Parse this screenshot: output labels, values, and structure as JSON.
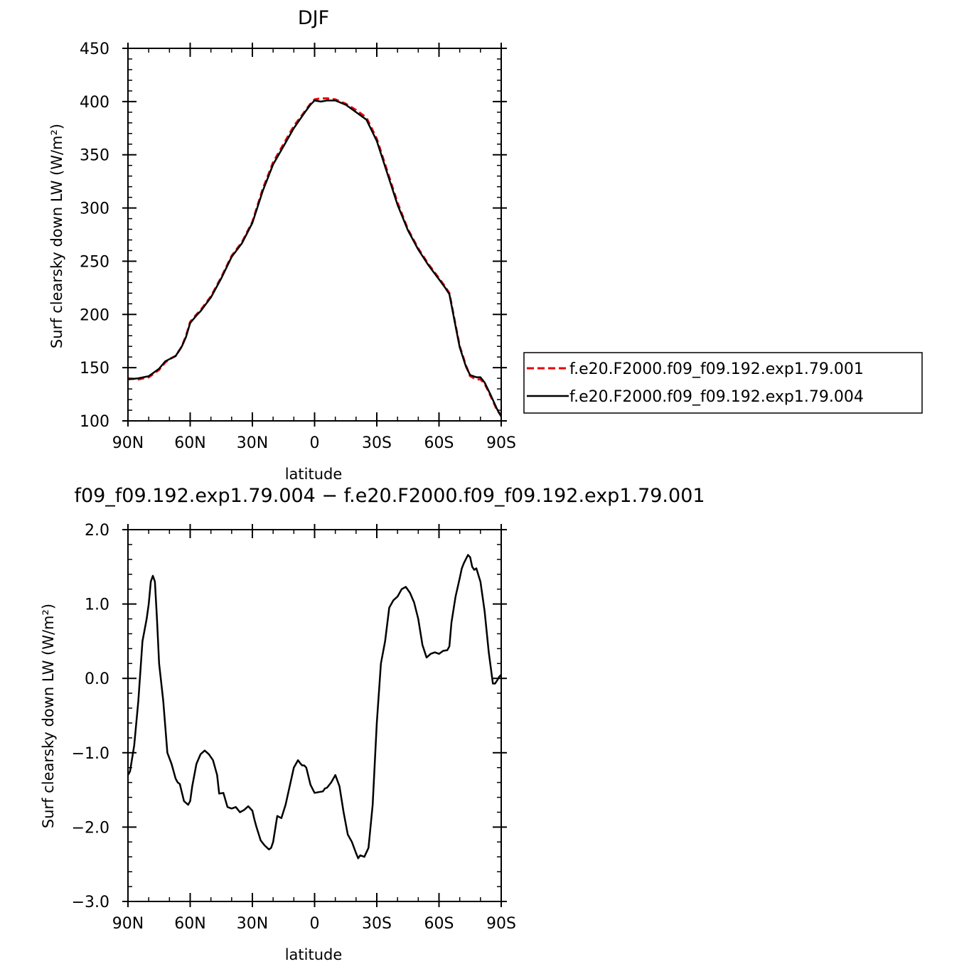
{
  "colors": {
    "series_001": "#e8000b",
    "series_004": "#000000",
    "axis": "#000000"
  },
  "chart_data": [
    {
      "type": "line",
      "title": "DJF",
      "xlabel": "latitude",
      "ylabel": "Surf clearsky down LW (W/m²)",
      "xlim": [
        90,
        -90
      ],
      "ylim": [
        100,
        450
      ],
      "xticks": [
        90,
        60,
        30,
        0,
        -30,
        -60,
        -90
      ],
      "xticklabels": [
        "90N",
        "60N",
        "30N",
        "0",
        "30S",
        "60S",
        "90S"
      ],
      "yticks": [
        100,
        150,
        200,
        250,
        300,
        350,
        400,
        450
      ],
      "yticklabels": [
        "100",
        "150",
        "200",
        "250",
        "300",
        "350",
        "400",
        "450"
      ],
      "legend_position": "right",
      "series": [
        {
          "name": "f.e20.F2000.f09_f09.192.exp1.79.001",
          "color": "#e8000b",
          "dash": "dashed",
          "x": [
            90,
            85,
            80,
            75,
            72,
            70,
            67,
            64,
            62,
            60,
            57,
            55,
            50,
            45,
            40,
            35,
            30,
            25,
            20,
            15,
            10,
            5,
            2,
            0,
            -3,
            -6,
            -10,
            -15,
            -20,
            -25,
            -30,
            -35,
            -40,
            -45,
            -50,
            -55,
            -60,
            -63,
            -65,
            -68,
            -70,
            -73,
            -75,
            -78,
            -80,
            -82,
            -85,
            -88,
            -90
          ],
          "y": [
            140,
            139,
            141,
            148,
            155,
            158,
            161,
            170,
            180,
            193,
            200,
            204,
            217,
            235,
            255,
            268,
            287,
            318,
            343,
            360,
            377,
            390,
            398,
            402,
            403,
            403,
            402,
            398,
            392,
            385,
            365,
            335,
            305,
            280,
            262,
            247,
            234,
            226,
            220,
            190,
            170,
            152,
            142,
            139,
            139,
            135,
            123,
            110,
            105
          ]
        },
        {
          "name": "f.e20.F2000.f09_f09.192.exp1.79.004",
          "color": "#000000",
          "dash": "solid",
          "x": [
            90,
            85,
            80,
            75,
            72,
            70,
            67,
            64,
            62,
            60,
            57,
            55,
            50,
            45,
            40,
            35,
            30,
            25,
            20,
            15,
            10,
            5,
            2,
            0,
            -3,
            -6,
            -10,
            -15,
            -20,
            -25,
            -30,
            -35,
            -40,
            -45,
            -50,
            -55,
            -60,
            -63,
            -65,
            -68,
            -70,
            -73,
            -75,
            -78,
            -80,
            -82,
            -85,
            -88,
            -90
          ],
          "y": [
            139,
            140,
            142,
            149,
            156,
            158,
            161,
            170,
            179,
            192,
            199,
            203,
            216,
            234,
            254,
            267,
            286,
            316,
            341,
            358,
            375,
            389,
            397,
            401,
            400,
            401,
            401,
            397,
            390,
            383,
            363,
            333,
            303,
            279,
            261,
            246,
            233,
            225,
            219,
            189,
            169,
            151,
            143,
            141,
            141,
            136,
            124,
            111,
            104
          ]
        }
      ]
    },
    {
      "type": "line",
      "title": "f09_f09.192.exp1.79.004 − f.e20.F2000.f09_f09.192.exp1.79.001",
      "xlabel": "latitude",
      "ylabel": "Surf clearsky down LW (W/m²)",
      "xlim": [
        90,
        -90
      ],
      "ylim": [
        -3.0,
        2.0
      ],
      "xticks": [
        90,
        60,
        30,
        0,
        -30,
        -60,
        -90
      ],
      "xticklabels": [
        "90N",
        "60N",
        "30N",
        "0",
        "30S",
        "60S",
        "90S"
      ],
      "yticks": [
        2.0,
        1.0,
        0.0,
        -1.0,
        -2.0,
        -3.0
      ],
      "yticklabels": [
        "2.0",
        "1.0",
        "0.0",
        "−1.0",
        "−2.0",
        "−3.0"
      ],
      "series": [
        {
          "name": "",
          "color": "#000000",
          "dash": "solid",
          "x": [
            90,
            89,
            87,
            85,
            83,
            81,
            80,
            79,
            78,
            77,
            76,
            75,
            73,
            71,
            69,
            67,
            66,
            65,
            63,
            61,
            60,
            59,
            57,
            55,
            53,
            51,
            49,
            47,
            46,
            44,
            42,
            40,
            38,
            36,
            34,
            32,
            30,
            29,
            28,
            26,
            24,
            22,
            21,
            20,
            18,
            16,
            14,
            12,
            10,
            8,
            7,
            6,
            5,
            4,
            2,
            0,
            -2,
            -4,
            -5,
            -6,
            -8,
            -10,
            -12,
            -14,
            -16,
            -18,
            -20,
            -21,
            -22,
            -24,
            -26,
            -28,
            -30,
            -32,
            -34,
            -36,
            -38,
            -40,
            -42,
            -44,
            -46,
            -48,
            -50,
            -52,
            -54,
            -56,
            -58,
            -60,
            -62,
            -64,
            -65,
            -66,
            -68,
            -70,
            -71,
            -72,
            -74,
            -75,
            -76,
            -77,
            -78,
            -80,
            -82,
            -84,
            -86,
            -87,
            -88,
            -89,
            -90
          ],
          "y": [
            -1.3,
            -1.25,
            -0.9,
            -0.3,
            0.5,
            0.8,
            1.0,
            1.3,
            1.38,
            1.3,
            0.8,
            0.2,
            -0.3,
            -1.0,
            -1.15,
            -1.35,
            -1.4,
            -1.42,
            -1.65,
            -1.7,
            -1.65,
            -1.45,
            -1.15,
            -1.02,
            -0.97,
            -1.02,
            -1.1,
            -1.3,
            -1.55,
            -1.54,
            -1.73,
            -1.75,
            -1.73,
            -1.8,
            -1.77,
            -1.72,
            -1.78,
            -1.9,
            -2.0,
            -2.18,
            -2.25,
            -2.3,
            -2.28,
            -2.2,
            -1.85,
            -1.88,
            -1.7,
            -1.45,
            -1.2,
            -1.1,
            -1.14,
            -1.17,
            -1.17,
            -1.2,
            -1.43,
            -1.54,
            -1.53,
            -1.52,
            -1.48,
            -1.47,
            -1.4,
            -1.3,
            -1.45,
            -1.8,
            -2.1,
            -2.2,
            -2.35,
            -2.42,
            -2.38,
            -2.4,
            -2.28,
            -1.7,
            -0.6,
            0.2,
            0.5,
            0.95,
            1.05,
            1.1,
            1.2,
            1.23,
            1.15,
            1.02,
            0.8,
            0.45,
            0.28,
            0.33,
            0.35,
            0.33,
            0.37,
            0.38,
            0.43,
            0.75,
            1.1,
            1.35,
            1.48,
            1.55,
            1.66,
            1.63,
            1.5,
            1.46,
            1.48,
            1.3,
            0.9,
            0.35,
            -0.07,
            -0.07,
            -0.03,
            0.02,
            0.05
          ]
        }
      ]
    }
  ]
}
